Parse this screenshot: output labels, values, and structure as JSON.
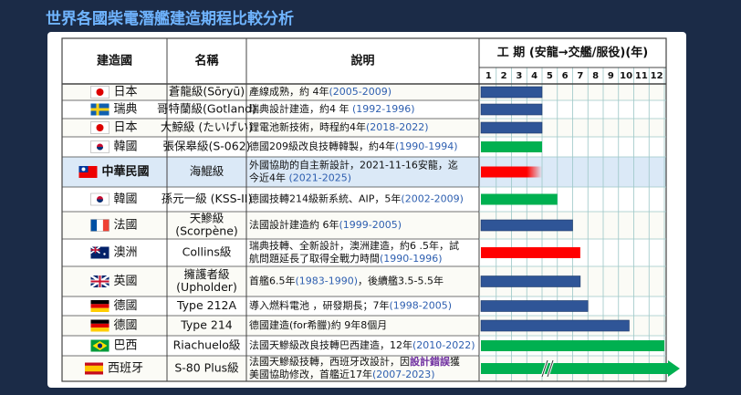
{
  "header": {
    "title": "世界各國柴電潛艦建造期程比較分析"
  },
  "table": {
    "columns": [
      "建造國",
      "名稱",
      "說明",
      "工 期 (安龍→交艦/服役)(年)"
    ],
    "ticks": [
      1,
      2,
      3,
      4,
      5,
      6,
      7,
      8,
      9,
      10,
      11,
      12
    ],
    "rows": [
      {
        "country": "日本",
        "name": [
          "蒼龍級(Sōryū)"
        ],
        "desc": [
          [
            {
              "text": "產線成熟，約 4年"
            },
            {
              "text": "(2005-2009)",
              "color": "#2e5fb0"
            }
          ]
        ],
        "years": 4,
        "color": "#2f5597"
      },
      {
        "country": "瑞典",
        "name": [
          "哥特蘭級(Gotland)"
        ],
        "desc": [
          [
            {
              "text": "瑞典設計建造，約4 年 "
            },
            {
              "text": "(1992-1996)",
              "color": "#2e5fb0"
            }
          ]
        ],
        "years": 4,
        "color": "#2f5597"
      },
      {
        "country": "日本",
        "name": [
          "大鯨級 (たいげい)"
        ],
        "desc": [
          [
            {
              "text": "鋰電池新技術，時程約4年"
            },
            {
              "text": "(2018-2022)",
              "color": "#2e5fb0"
            }
          ]
        ],
        "years": 4,
        "color": "#2f5597"
      },
      {
        "country": "韓國",
        "name": [
          "張保皋級(S-062)"
        ],
        "desc": [
          [
            {
              "text": "德國209級改良技轉韓製，約4年"
            },
            {
              "text": "(1990-1994)",
              "color": "#2e5fb0"
            }
          ]
        ],
        "years": 4,
        "color": "#00b050"
      },
      {
        "country": "中華民國",
        "name": [
          "海鯤級"
        ],
        "desc": [
          [
            {
              "text": "外國協助的自主新設計，2021-11-16安龍，迄"
            }
          ],
          [
            {
              "text": "今近4年 "
            },
            {
              "text": "(2021-2025)",
              "color": "#2e5fb0"
            }
          ]
        ],
        "years": 4,
        "color": "#ff0000"
      },
      {
        "country": "韓國",
        "name": [
          "孫元一級 (KSS-II)"
        ],
        "desc": [
          [
            {
              "text": "德國技轉214級新系統、AIP，5年"
            },
            {
              "text": "(2002-2009)",
              "color": "#2e5fb0"
            }
          ]
        ],
        "years": 5,
        "color": "#00b050"
      },
      {
        "country": "法國",
        "name": [
          "天鰺級",
          "(Scorpène)"
        ],
        "desc": [
          [
            {
              "text": "法國設計建造約 6年"
            },
            {
              "text": "(1999-2005)",
              "color": "#2e5fb0"
            }
          ]
        ],
        "years": 6,
        "color": "#2f5597"
      },
      {
        "country": "澳洲",
        "name": [
          "Collins級"
        ],
        "desc": [
          [
            {
              "text": "瑞典技轉、全新設計，澳洲建造，約6 .5年，試"
            }
          ],
          [
            {
              "text": "航問題延長了取得全戰力時間"
            },
            {
              "text": "(1990-1996)",
              "color": "#2e5fb0"
            }
          ]
        ],
        "years": 6.5,
        "color": "#ff0000"
      },
      {
        "country": "英國",
        "name": [
          "擁護者級",
          "(Upholder)"
        ],
        "desc": [
          [
            {
              "text": "首艦6.5年"
            },
            {
              "text": "(1983-1990)",
              "color": "#2e5fb0"
            },
            {
              "text": "，後續艦3.5-5.5年"
            }
          ]
        ],
        "years": 6.5,
        "color": "#2f5597"
      },
      {
        "country": "德國",
        "name": [
          "Type 212A"
        ],
        "desc": [
          [
            {
              "text": "導入燃料電池 ，研發期長；7年"
            },
            {
              "text": "(1998-2005)",
              "color": "#2e5fb0"
            }
          ]
        ],
        "years": 7,
        "color": "#2f5597"
      },
      {
        "country": "德國",
        "name": [
          "Type 214"
        ],
        "desc": [
          [
            {
              "text": "德國建造(for希臘)約 9年8個月"
            }
          ]
        ],
        "years": 9.7,
        "color": "#2f5597"
      },
      {
        "country": "巴西",
        "name": [
          "Riachuelo級"
        ],
        "desc": [
          [
            {
              "text": "法國天鰺級改良技轉巴西建造，12年"
            },
            {
              "text": "(2010-2022)",
              "color": "#2e5fb0"
            }
          ]
        ],
        "years": 12,
        "color": "#00b050"
      },
      {
        "country": "西班牙",
        "name": [
          "S-80 Plus級"
        ],
        "desc": [
          [
            {
              "text": "法國天鰺級技轉，西班牙改設計，因"
            },
            {
              "text": "設計錯誤",
              "color": "#7030a0"
            },
            {
              "text": "獲"
            }
          ],
          [
            {
              "text": "美國協助修改，首艦近17年"
            },
            {
              "text": "(2007-2023)",
              "color": "#2e5fb0"
            }
          ]
        ],
        "years": null,
        "color": "#00b050"
      }
    ]
  }
}
